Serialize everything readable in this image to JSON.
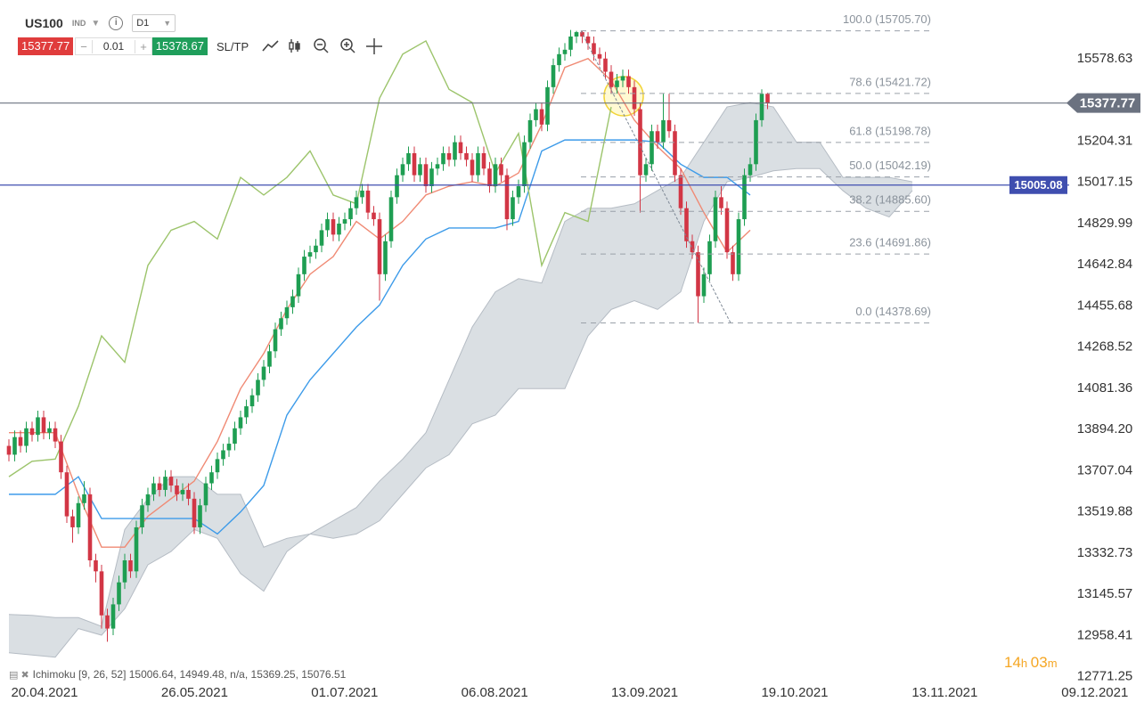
{
  "toolbar": {
    "symbol": "US100",
    "market": "IND",
    "timeframe": "D1",
    "sell_price": "15377.77",
    "lot": "0.01",
    "buy_price": "15378.67",
    "sltp": "SL/TP"
  },
  "chart_data": {
    "type": "candlestick",
    "x_labels": [
      "20.04.2021",
      "26.05.2021",
      "01.07.2021",
      "06.08.2021",
      "13.09.2021",
      "19.10.2021",
      "13.11.2021",
      "09.12.2021"
    ],
    "ylim": [
      12620,
      15846
    ],
    "yticks": [
      15578.63,
      15204.31,
      15017.15,
      14829.99,
      14642.84,
      14455.68,
      14268.52,
      14081.36,
      {
        "value": 13894.2,
        "label": "13894.20"
      },
      13707.04,
      13519.88,
      13332.73,
      13145.57,
      12958.41,
      12771.25
    ],
    "grid": false,
    "candles": {
      "up_color": "#1e9e52",
      "down_color": "#d23645",
      "open": [
        13820,
        13780,
        13860,
        13820,
        13900,
        13870,
        13950,
        13880,
        13900,
        13840,
        13700,
        13500,
        13450,
        13560,
        13600,
        13300,
        13250,
        13050,
        12990,
        13100,
        13200,
        13300,
        13250,
        13450,
        13550,
        13600,
        13650,
        13620,
        13680,
        13640,
        13600,
        13620,
        13580,
        13450,
        13550,
        13650,
        13700,
        13760,
        13800,
        13830,
        13900,
        13950,
        14000,
        14050,
        14120,
        14180,
        14250,
        14350,
        14400,
        14450,
        14500,
        14600,
        14680,
        14700,
        14730,
        14800,
        14850,
        14780,
        14830,
        14850,
        14900,
        14950,
        14980,
        14880,
        14850,
        14600,
        14750,
        14950,
        15050,
        15100,
        15150,
        15050,
        15100,
        15000,
        15080,
        15100,
        15150,
        15120,
        15200,
        15150,
        15120,
        15050,
        15150,
        15080,
        15000,
        15100,
        15050,
        14850,
        14950,
        15000,
        15200,
        15300,
        15350,
        15280,
        15450,
        15550,
        15600,
        15620,
        15680,
        15700,
        15680,
        15650,
        15600,
        15580,
        15520,
        15450,
        15480,
        15500,
        15450,
        15350,
        15050,
        15100,
        15250,
        15200,
        15300,
        15250,
        15050,
        14900,
        14750,
        14700,
        14500,
        14600,
        14750,
        14950,
        14900,
        14700,
        14600,
        14850,
        15050,
        15100,
        15300,
        15420
      ],
      "high": [
        13850,
        13890,
        13890,
        13930,
        13930,
        13980,
        13980,
        13930,
        13930,
        13870,
        13730,
        13530,
        13590,
        13660,
        13630,
        13330,
        13280,
        13080,
        13130,
        13230,
        13330,
        13330,
        13480,
        13580,
        13630,
        13680,
        13680,
        13710,
        13710,
        13670,
        13650,
        13650,
        13610,
        13580,
        13680,
        13730,
        13790,
        13830,
        13860,
        13930,
        13980,
        14030,
        14080,
        14150,
        14210,
        14280,
        14380,
        14430,
        14480,
        14530,
        14630,
        14710,
        14730,
        14760,
        14830,
        14880,
        14880,
        14860,
        14880,
        14930,
        14980,
        15010,
        15010,
        14910,
        14880,
        14780,
        14980,
        15080,
        15130,
        15180,
        15180,
        15130,
        15130,
        15110,
        15130,
        15180,
        15180,
        15230,
        15230,
        15180,
        15150,
        15180,
        15180,
        15110,
        15130,
        15130,
        15080,
        14980,
        15030,
        15230,
        15330,
        15380,
        15380,
        15480,
        15580,
        15630,
        15650,
        15710,
        15706,
        15706,
        15700,
        15680,
        15630,
        15610,
        15550,
        15510,
        15530,
        15530,
        15480,
        15380,
        15130,
        15280,
        15280,
        15420,
        15420,
        15280,
        15080,
        14930,
        14780,
        14730,
        14630,
        14780,
        14980,
        15000,
        14930,
        14730,
        14880,
        15080,
        15130,
        15330,
        15440,
        15425
      ],
      "low": [
        13750,
        13750,
        13790,
        13790,
        13840,
        13840,
        13850,
        13850,
        13810,
        13670,
        13470,
        13380,
        13420,
        13530,
        13270,
        13200,
        12990,
        12930,
        12960,
        13070,
        13170,
        13220,
        13220,
        13420,
        13520,
        13570,
        13590,
        13590,
        13610,
        13570,
        13570,
        13550,
        13420,
        13420,
        13520,
        13620,
        13670,
        13730,
        13770,
        13800,
        13870,
        13920,
        13970,
        14020,
        14090,
        14150,
        14220,
        14320,
        14370,
        14420,
        14470,
        14570,
        14650,
        14670,
        14700,
        14770,
        14750,
        14750,
        14800,
        14820,
        14870,
        14920,
        14850,
        14820,
        14480,
        14570,
        14720,
        14920,
        15020,
        15070,
        15020,
        15020,
        14970,
        14970,
        15050,
        15070,
        15090,
        15090,
        15120,
        15090,
        15020,
        15020,
        15050,
        14970,
        14970,
        15020,
        14800,
        14820,
        14920,
        14970,
        15170,
        15270,
        15250,
        15250,
        15420,
        15520,
        15570,
        15590,
        15650,
        15650,
        15620,
        15570,
        15550,
        15490,
        15420,
        15420,
        15450,
        15420,
        15320,
        14880,
        15020,
        15070,
        15170,
        15170,
        15220,
        15020,
        14870,
        14720,
        14670,
        14379,
        14470,
        14570,
        14720,
        14870,
        14670,
        14570,
        14570,
        14820,
        15020,
        15070,
        15270,
        15350
      ],
      "close": [
        13780,
        13860,
        13820,
        13900,
        13870,
        13950,
        13880,
        13900,
        13840,
        13700,
        13500,
        13450,
        13560,
        13600,
        13300,
        13250,
        13050,
        12990,
        13100,
        13200,
        13300,
        13250,
        13450,
        13550,
        13600,
        13650,
        13620,
        13680,
        13640,
        13600,
        13620,
        13580,
        13450,
        13550,
        13650,
        13700,
        13760,
        13800,
        13830,
        13900,
        13950,
        14000,
        14050,
        14120,
        14180,
        14250,
        14350,
        14400,
        14450,
        14500,
        14600,
        14680,
        14700,
        14730,
        14800,
        14850,
        14780,
        14830,
        14850,
        14900,
        14950,
        14980,
        14880,
        14850,
        14600,
        14750,
        14950,
        15050,
        15100,
        15150,
        15050,
        15100,
        15000,
        15080,
        15100,
        15150,
        15120,
        15200,
        15150,
        15120,
        15050,
        15150,
        15080,
        15000,
        15100,
        15050,
        14850,
        14950,
        15000,
        15200,
        15300,
        15350,
        15280,
        15450,
        15550,
        15600,
        15620,
        15680,
        15700,
        15680,
        15650,
        15600,
        15580,
        15520,
        15450,
        15480,
        15500,
        15450,
        15350,
        15050,
        15100,
        15250,
        15200,
        15300,
        15250,
        15050,
        14900,
        14750,
        14700,
        14500,
        14600,
        14750,
        14950,
        14900,
        14700,
        14600,
        14850,
        15050,
        15100,
        15300,
        15420,
        15378
      ]
    },
    "lines": [
      {
        "color": "#f08a74",
        "x": [
          0,
          4,
          8,
          12,
          16,
          20,
          24,
          28,
          32,
          36,
          40,
          44,
          48,
          52,
          56,
          60,
          64,
          68,
          72,
          76,
          80,
          84,
          88,
          92,
          96,
          100,
          104,
          108,
          112,
          116,
          120,
          124,
          128
        ],
        "values": [
          13880,
          13880,
          13880,
          13600,
          13360,
          13360,
          13500,
          13580,
          13660,
          13840,
          14080,
          14240,
          14440,
          14600,
          14680,
          14840,
          14760,
          14840,
          14960,
          15000,
          15020,
          15000,
          15060,
          15280,
          15540,
          15580,
          15480,
          15300,
          15180,
          15080,
          14880,
          14700,
          14800
        ]
      },
      {
        "color": "#3d9be9",
        "x": [
          0,
          4,
          8,
          12,
          16,
          20,
          24,
          28,
          32,
          36,
          40,
          44,
          48,
          52,
          56,
          60,
          64,
          68,
          72,
          76,
          80,
          84,
          88,
          92,
          96,
          100,
          104,
          108,
          112,
          116,
          120,
          124,
          128
        ],
        "values": [
          13600,
          13600,
          13600,
          13680,
          13490,
          13490,
          13490,
          13490,
          13490,
          13420,
          13520,
          13640,
          13960,
          14120,
          14240,
          14360,
          14460,
          14640,
          14760,
          14810,
          14810,
          14810,
          14840,
          15160,
          15210,
          15210,
          15210,
          15210,
          15200,
          15100,
          15040,
          15040,
          14960
        ]
      },
      {
        "color": "#9cc46b",
        "x": [
          0,
          4,
          8,
          12,
          16,
          20,
          24,
          28,
          32,
          36,
          40,
          44,
          48,
          52,
          56,
          60,
          64,
          68,
          72,
          76,
          80,
          84,
          88,
          92,
          96,
          100,
          104
        ],
        "values": [
          13680,
          13750,
          13760,
          14000,
          14320,
          14200,
          14640,
          14800,
          14840,
          14760,
          15040,
          14960,
          15040,
          15160,
          14960,
          14920,
          15400,
          15600,
          15660,
          15440,
          15380,
          15060,
          15240,
          14640,
          14880,
          14840,
          15360
        ]
      }
    ],
    "cloud": {
      "color": "#d6dbe0",
      "line_color": "#b5bcc4",
      "x": [
        0,
        4,
        8,
        12,
        16,
        20,
        24,
        28,
        32,
        36,
        40,
        44,
        48,
        52,
        56,
        60,
        64,
        68,
        72,
        76,
        80,
        84,
        88,
        92,
        96,
        100,
        104,
        108,
        112,
        116,
        120,
        124,
        128,
        132,
        136,
        140,
        144,
        148,
        152,
        156
      ],
      "span_a": [
        13054,
        13050,
        13040,
        13040,
        13000,
        13440,
        13580,
        13680,
        13680,
        13600,
        13600,
        13360,
        13400,
        13420,
        13480,
        13540,
        13660,
        13760,
        13880,
        14120,
        14360,
        14520,
        14580,
        14560,
        14840,
        14900,
        14900,
        14920,
        14980,
        15040,
        15200,
        15360,
        15380,
        15360,
        15200,
        15200,
        15040,
        15040,
        15040,
        15020
      ],
      "span_b": [
        12880,
        12870,
        12860,
        12990,
        12960,
        13080,
        13280,
        13340,
        13440,
        13400,
        13240,
        13160,
        13340,
        13420,
        13400,
        13420,
        13480,
        13600,
        13720,
        13780,
        13920,
        13960,
        14080,
        14080,
        14080,
        14320,
        14440,
        14480,
        14440,
        14520,
        14840,
        15020,
        15040,
        15070,
        15080,
        15080,
        14980,
        14900,
        14860,
        14980
      ]
    },
    "fib_levels": [
      {
        "label": "100.0 (15705.70)",
        "value": 15705.7
      },
      {
        "label": "78.6 (15421.72)",
        "value": 15421.72
      },
      {
        "label": "61.8 (15198.78)",
        "value": 15198.78
      },
      {
        "label": "50.0 (15042.19)",
        "value": 15042.19
      },
      {
        "label": "38.2 (14885.60)",
        "value": 14885.6
      },
      {
        "label": "23.6 (14691.86)",
        "value": 14691.86
      },
      {
        "label": "0.0 (14378.69)",
        "value": 14378.69
      }
    ],
    "price_lines": [
      {
        "value": 15377.77,
        "color": "#6b7280"
      },
      {
        "value": 15005.08,
        "color": "#3f4eaf"
      }
    ]
  },
  "footer": {
    "indicator": "Ichimoku [9, 26, 52] 15006.64, 14949.48, n/a, 15369.25, 15076.51",
    "countdown": [
      "14",
      "h",
      "03",
      "m"
    ]
  }
}
